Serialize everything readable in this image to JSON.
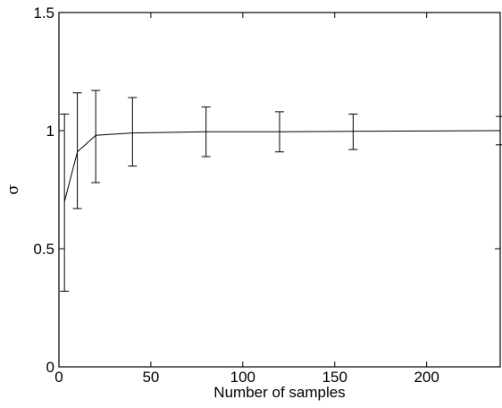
{
  "chart_data": {
    "type": "line",
    "title": "",
    "xlabel": "Number of samples",
    "ylabel": "σ",
    "xlim": [
      0,
      240
    ],
    "ylim": [
      0,
      1.5
    ],
    "x_ticks": [
      0,
      50,
      100,
      150,
      200
    ],
    "x_tick_labels": [
      "0",
      "50",
      "100",
      "150",
      "200"
    ],
    "y_ticks": [
      0,
      0.5,
      1,
      1.5
    ],
    "y_tick_labels": [
      "0",
      "0.5",
      "1",
      "1.5"
    ],
    "grid": false,
    "series": [
      {
        "x": [
          3,
          10,
          20,
          40,
          80,
          120,
          160,
          240
        ],
        "y": [
          0.7,
          0.91,
          0.98,
          0.99,
          0.995,
          0.995,
          0.997,
          1.0
        ],
        "err_low": [
          0.32,
          0.67,
          0.78,
          0.85,
          0.89,
          0.91,
          0.92,
          0.94
        ],
        "err_high": [
          1.07,
          1.16,
          1.17,
          1.14,
          1.1,
          1.08,
          1.07,
          1.06
        ],
        "color": "#000000"
      }
    ]
  }
}
